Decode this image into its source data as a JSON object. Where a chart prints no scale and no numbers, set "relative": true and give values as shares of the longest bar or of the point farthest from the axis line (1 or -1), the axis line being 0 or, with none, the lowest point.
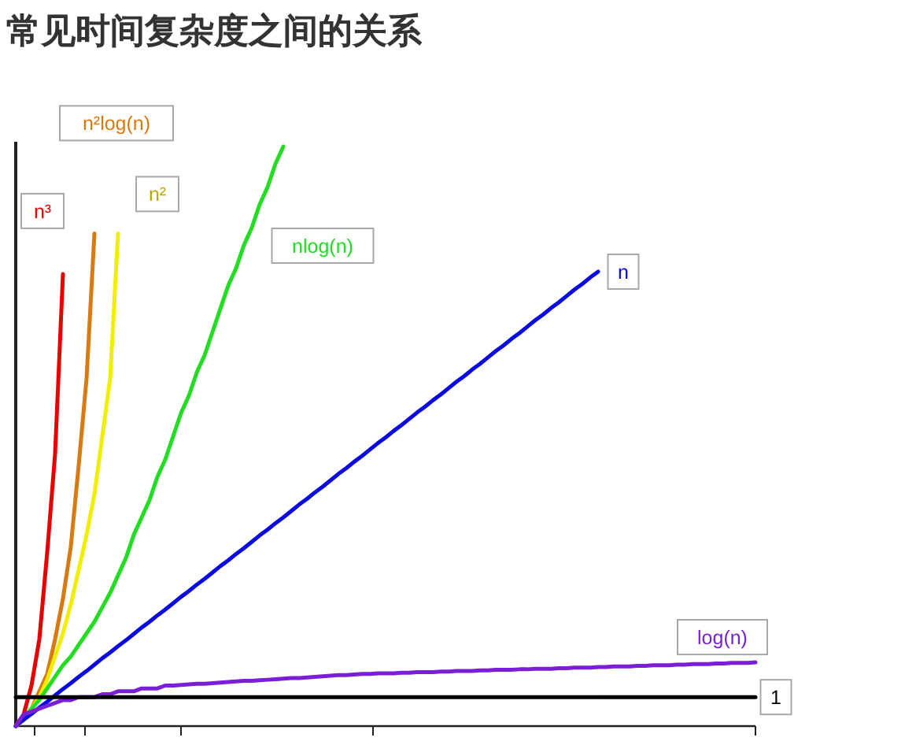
{
  "chart_data": {
    "type": "line",
    "title": "常见时间复杂度之间的关系",
    "relative": true,
    "categories": [
      null,
      null,
      null,
      null,
      null,
      null,
      null,
      null,
      null,
      null,
      null,
      null,
      null,
      null,
      null,
      null,
      null,
      null,
      null,
      null,
      null,
      null,
      null,
      null,
      null,
      null,
      null,
      null,
      null,
      null,
      null,
      null,
      null,
      null,
      null,
      null,
      null,
      null,
      null,
      null,
      null,
      null,
      null,
      null,
      null,
      null,
      null,
      null,
      null,
      null,
      null,
      null,
      null,
      null,
      null,
      null,
      null,
      null,
      null,
      null,
      null,
      null,
      null,
      null,
      null,
      null,
      null,
      null,
      null,
      null,
      null,
      null,
      null,
      null,
      null,
      null,
      null,
      null,
      null,
      null,
      null,
      null,
      null,
      null,
      null,
      null,
      null,
      null,
      null,
      null,
      null,
      null,
      null,
      null,
      null
    ],
    "series": [
      {
        "name": "n³",
        "color": "#e60000",
        "values": [
          0,
          0.02,
          0.07,
          0.15,
          0.3,
          0.47,
          0.78,
          null,
          null,
          null,
          null,
          null,
          null,
          null,
          null,
          null,
          null,
          null,
          null,
          null,
          null,
          null,
          null,
          null,
          null,
          null,
          null,
          null,
          null,
          null,
          null,
          null,
          null,
          null,
          null,
          null,
          null,
          null,
          null,
          null,
          null,
          null,
          null,
          null,
          null,
          null,
          null,
          null,
          null,
          null,
          null,
          null,
          null,
          null,
          null,
          null,
          null,
          null,
          null,
          null,
          null,
          null,
          null,
          null,
          null,
          null,
          null,
          null,
          null,
          null,
          null,
          null,
          null,
          null,
          null,
          null,
          null,
          null,
          null,
          null,
          null,
          null,
          null,
          null,
          null,
          null,
          null,
          null,
          null,
          null,
          null,
          null,
          null,
          null,
          null
        ]
      },
      {
        "name": "n²log(n)",
        "color": "#d97a10",
        "values": [
          0,
          0.01,
          0.03,
          0.06,
          0.09,
          0.15,
          0.22,
          0.31,
          0.45,
          0.6,
          0.85,
          null,
          null,
          null,
          null,
          null,
          null,
          null,
          null,
          null,
          null,
          null,
          null,
          null,
          null,
          null,
          null,
          null,
          null,
          null,
          null,
          null,
          null,
          null,
          null,
          null,
          null,
          null,
          null,
          null,
          null,
          null,
          null,
          null,
          null,
          null,
          null,
          null,
          null,
          null,
          null,
          null,
          null,
          null,
          null,
          null,
          null,
          null,
          null,
          null,
          null,
          null,
          null,
          null,
          null,
          null,
          null,
          null,
          null,
          null,
          null,
          null,
          null,
          null,
          null,
          null,
          null,
          null,
          null,
          null,
          null,
          null,
          null,
          null,
          null,
          null,
          null,
          null,
          null,
          null,
          null,
          null,
          null,
          null,
          null
        ]
      },
      {
        "name": "n²",
        "color": "#f2ee00",
        "values": [
          0,
          0.01,
          0.03,
          0.05,
          0.08,
          0.12,
          0.16,
          0.21,
          0.27,
          0.33,
          0.4,
          0.5,
          0.6,
          0.85,
          null,
          null,
          null,
          null,
          null,
          null,
          null,
          null,
          null,
          null,
          null,
          null,
          null,
          null,
          null,
          null,
          null,
          null,
          null,
          null,
          null,
          null,
          null,
          null,
          null,
          null,
          null,
          null,
          null,
          null,
          null,
          null,
          null,
          null,
          null,
          null,
          null,
          null,
          null,
          null,
          null,
          null,
          null,
          null,
          null,
          null,
          null,
          null,
          null,
          null,
          null,
          null,
          null,
          null,
          null,
          null,
          null,
          null,
          null,
          null,
          null,
          null,
          null,
          null,
          null,
          null,
          null,
          null,
          null,
          null,
          null,
          null,
          null,
          null,
          null,
          null,
          null,
          null,
          null,
          null,
          null
        ]
      },
      {
        "name": "nlog(n)",
        "color": "#22dd22",
        "values": [
          0,
          0.015,
          0.03,
          0.045,
          0.065,
          0.085,
          0.105,
          0.12,
          0.14,
          0.16,
          0.18,
          0.205,
          0.23,
          0.26,
          0.29,
          0.33,
          0.36,
          0.39,
          0.43,
          0.46,
          0.5,
          0.54,
          0.57,
          0.61,
          0.64,
          0.68,
          0.72,
          0.76,
          0.79,
          0.83,
          0.86,
          0.9,
          0.93,
          0.97,
          1,
          null,
          null,
          null,
          null,
          null,
          null,
          null,
          null,
          null,
          null,
          null,
          null,
          null,
          null,
          null,
          null,
          null,
          null,
          null,
          null,
          null,
          null,
          null,
          null,
          null,
          null,
          null,
          null,
          null,
          null,
          null,
          null,
          null,
          null,
          null,
          null,
          null,
          null,
          null,
          null,
          null,
          null,
          null,
          null,
          null,
          null,
          null,
          null,
          null,
          null,
          null,
          null,
          null,
          null,
          null,
          null,
          null,
          null,
          null,
          null
        ]
      },
      {
        "name": "n",
        "color": "#0a0ae0",
        "values": [
          0,
          0.011,
          0.021,
          0.032,
          0.042,
          0.053,
          0.064,
          0.074,
          0.085,
          0.095,
          0.106,
          0.117,
          0.127,
          0.138,
          0.148,
          0.159,
          0.17,
          0.18,
          0.191,
          0.201,
          0.212,
          0.223,
          0.233,
          0.244,
          0.254,
          0.265,
          0.276,
          0.286,
          0.297,
          0.307,
          0.318,
          0.329,
          0.339,
          0.35,
          0.36,
          0.371,
          0.382,
          0.392,
          0.403,
          0.413,
          0.424,
          0.435,
          0.445,
          0.456,
          0.466,
          0.477,
          0.488,
          0.498,
          0.509,
          0.519,
          0.53,
          0.541,
          0.551,
          0.562,
          0.572,
          0.583,
          0.594,
          0.604,
          0.615,
          0.625,
          0.636,
          0.647,
          0.657,
          0.668,
          0.678,
          0.689,
          0.7,
          0.71,
          0.721,
          0.731,
          0.742,
          0.753,
          0.763,
          0.774,
          0.784,
          null,
          null,
          null,
          null,
          null,
          null,
          null,
          null,
          null,
          null,
          null,
          null,
          null,
          null,
          null,
          null,
          null,
          null,
          null,
          null
        ]
      },
      {
        "name": "log(n)",
        "color": "#7a1fd6",
        "values": [
          0,
          0.02,
          0.025,
          0.03,
          0.035,
          0.04,
          0.045,
          0.045,
          0.05,
          0.05,
          0.05,
          0.055,
          0.055,
          0.06,
          0.06,
          0.06,
          0.065,
          0.065,
          0.065,
          0.07,
          0.07,
          0.071,
          0.072,
          0.073,
          0.073,
          0.074,
          0.075,
          0.076,
          0.077,
          0.078,
          0.078,
          0.079,
          0.08,
          0.081,
          0.082,
          0.083,
          0.083,
          0.084,
          0.085,
          0.086,
          0.087,
          0.088,
          0.088,
          0.089,
          0.09,
          0.09,
          0.091,
          0.091,
          0.091,
          0.092,
          0.092,
          0.093,
          0.093,
          0.093,
          0.094,
          0.094,
          0.095,
          0.095,
          0.095,
          0.096,
          0.096,
          0.097,
          0.097,
          0.097,
          0.098,
          0.098,
          0.099,
          0.099,
          0.099,
          0.1,
          0.1,
          0.101,
          0.101,
          0.101,
          0.102,
          0.102,
          0.103,
          0.103,
          0.103,
          0.104,
          0.104,
          0.105,
          0.105,
          0.105,
          0.106,
          0.106,
          0.107,
          0.107,
          0.107,
          0.108,
          0.108,
          0.109,
          0.109,
          0.109,
          0.11
        ]
      },
      {
        "name": "1",
        "color": "#000000",
        "values": [
          0.05,
          0.05,
          0.05,
          0.05,
          0.05,
          0.05,
          0.05,
          0.05,
          0.05,
          0.05,
          0.05,
          0.05,
          0.05,
          0.05,
          0.05,
          0.05,
          0.05,
          0.05,
          0.05,
          0.05,
          0.05,
          0.05,
          0.05,
          0.05,
          0.05,
          0.05,
          0.05,
          0.05,
          0.05,
          0.05,
          0.05,
          0.05,
          0.05,
          0.05,
          0.05,
          0.05,
          0.05,
          0.05,
          0.05,
          0.05,
          0.05,
          0.05,
          0.05,
          0.05,
          0.05,
          0.05,
          0.05,
          0.05,
          0.05,
          0.05,
          0.05,
          0.05,
          0.05,
          0.05,
          0.05,
          0.05,
          0.05,
          0.05,
          0.05,
          0.05,
          0.05,
          0.05,
          0.05,
          0.05,
          0.05,
          0.05,
          0.05,
          0.05,
          0.05,
          0.05,
          0.05,
          0.05,
          0.05,
          0.05,
          0.05,
          0.05,
          0.05,
          0.05,
          0.05,
          0.05,
          0.05,
          0.05,
          0.05,
          0.05,
          0.05,
          0.05,
          0.05,
          0.05,
          0.05,
          0.05,
          0.05,
          0.05,
          0.05,
          0.05,
          0.05
        ]
      }
    ]
  }
}
